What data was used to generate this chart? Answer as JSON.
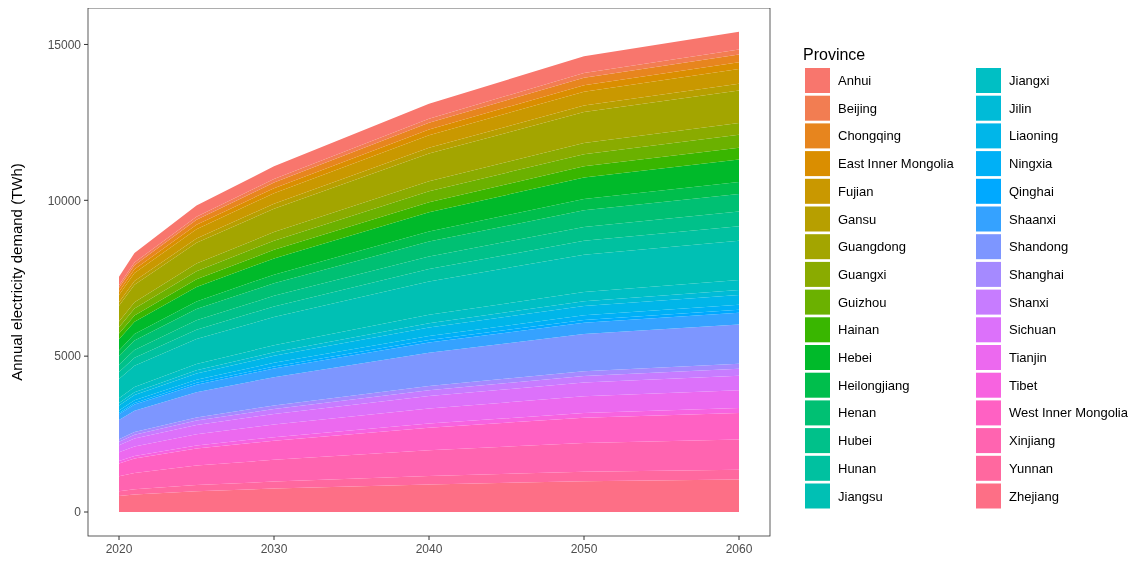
{
  "chart_data": {
    "type": "area",
    "stacked": true,
    "ylabel": "Annual electricity demand (TWh)",
    "legend_title": "Province",
    "legend": "right",
    "x": [
      2020,
      2021,
      2025,
      2030,
      2040,
      2050,
      2060
    ],
    "xlim": [
      2018,
      2062
    ],
    "xticks": [
      2020,
      2030,
      2040,
      2050,
      2060
    ],
    "ylim": [
      -770,
      16170
    ],
    "yticks": [
      0,
      5000,
      10000,
      15000
    ],
    "series": [
      {
        "name": "Zhejiang",
        "color": "#FD6F86",
        "values": [
          510,
          560,
          665,
          750,
          885,
          990,
          1040
        ]
      },
      {
        "name": "Yunnan",
        "color": "#FF689F",
        "values": [
          155,
          170,
          200,
          225,
          270,
          300,
          315
        ]
      },
      {
        "name": "Xinjiang",
        "color": "#FF64B0",
        "values": [
          480,
          525,
          625,
          700,
          830,
          925,
          975
        ]
      },
      {
        "name": "West Inner Mongolia",
        "color": "#FF61C3",
        "values": [
          415,
          460,
          545,
          610,
          720,
          810,
          850
        ]
      },
      {
        "name": "Tibet",
        "color": "#F763E0",
        "values": [
          80,
          85,
          100,
          115,
          135,
          150,
          160
        ]
      },
      {
        "name": "Tianjin",
        "color": "#EC69EF",
        "values": [
          275,
          305,
          360,
          405,
          480,
          535,
          565
        ]
      },
      {
        "name": "Sichuan",
        "color": "#DC71FA",
        "values": [
          230,
          255,
          300,
          340,
          400,
          445,
          470
        ]
      },
      {
        "name": "Shanxi",
        "color": "#C77CFF",
        "values": [
          110,
          120,
          140,
          160,
          185,
          210,
          220
        ]
      },
      {
        "name": "Shanghai",
        "color": "#A58AFF",
        "values": [
          80,
          85,
          100,
          115,
          135,
          150,
          160
        ]
      },
      {
        "name": "Shandong",
        "color": "#7D96FF",
        "values": [
          615,
          680,
          805,
          905,
          1070,
          1195,
          1260
        ]
      },
      {
        "name": "Shaanxi",
        "color": "#35A2FF",
        "values": [
          185,
          205,
          245,
          275,
          325,
          360,
          380
        ]
      },
      {
        "name": "Qinghai",
        "color": "#00A9FF",
        "values": [
          45,
          50,
          60,
          70,
          80,
          90,
          95
        ]
      },
      {
        "name": "Ningxia",
        "color": "#00B0F6",
        "values": [
          80,
          85,
          100,
          115,
          135,
          150,
          160
        ]
      },
      {
        "name": "Liaoning",
        "color": "#00B6E9",
        "values": [
          155,
          170,
          200,
          225,
          270,
          300,
          315
        ]
      },
      {
        "name": "Jilin",
        "color": "#00BBD7",
        "values": [
          80,
          85,
          100,
          115,
          135,
          150,
          160
        ]
      },
      {
        "name": "Jiangxi",
        "color": "#00BFC4",
        "values": [
          155,
          170,
          200,
          225,
          270,
          300,
          315
        ]
      },
      {
        "name": "Jiangsu",
        "color": "#00C0B4",
        "values": [
          615,
          680,
          805,
          905,
          1070,
          1195,
          1260
        ]
      },
      {
        "name": "Hunan",
        "color": "#00C1A0",
        "values": [
          230,
          255,
          300,
          340,
          400,
          445,
          470
        ]
      },
      {
        "name": "Hubei",
        "color": "#00C18A",
        "values": [
          230,
          255,
          300,
          340,
          400,
          445,
          470
        ]
      },
      {
        "name": "Henan",
        "color": "#00C073",
        "values": [
          275,
          305,
          360,
          405,
          480,
          535,
          565
        ]
      },
      {
        "name": "Heilongjiang",
        "color": "#00BE4C",
        "values": [
          185,
          205,
          245,
          275,
          325,
          360,
          380
        ]
      },
      {
        "name": "Hebei",
        "color": "#00BA2A",
        "values": [
          355,
          390,
          465,
          520,
          615,
          690,
          725
        ]
      },
      {
        "name": "Hainan",
        "color": "#39B600",
        "values": [
          185,
          205,
          245,
          275,
          325,
          360,
          380
        ]
      },
      {
        "name": "Guizhou",
        "color": "#6BB100",
        "values": [
          200,
          220,
          260,
          295,
          350,
          390,
          410
        ]
      },
      {
        "name": "Guangxi",
        "color": "#8AAB00",
        "values": [
          185,
          205,
          245,
          275,
          325,
          360,
          380
        ]
      },
      {
        "name": "Guangdong",
        "color": "#A3A500",
        "values": [
          510,
          560,
          665,
          750,
          885,
          990,
          1040
        ]
      },
      {
        "name": "Gansu",
        "color": "#B79F00",
        "values": [
          110,
          120,
          140,
          160,
          185,
          210,
          220
        ]
      },
      {
        "name": "Fujian",
        "color": "#C99800",
        "values": [
          230,
          255,
          300,
          340,
          400,
          445,
          470
        ]
      },
      {
        "name": "East Inner Mongolia",
        "color": "#DA8E00",
        "values": [
          110,
          120,
          140,
          160,
          185,
          210,
          220
        ]
      },
      {
        "name": "Chongqing",
        "color": "#E7851E",
        "values": [
          125,
          135,
          160,
          180,
          215,
          240,
          250
        ]
      },
      {
        "name": "Beijing",
        "color": "#F27D52",
        "values": [
          80,
          85,
          100,
          115,
          135,
          150,
          160
        ]
      },
      {
        "name": "Anhui",
        "color": "#F8766D",
        "values": [
          275,
          305,
          360,
          405,
          480,
          535,
          565
        ]
      }
    ]
  }
}
